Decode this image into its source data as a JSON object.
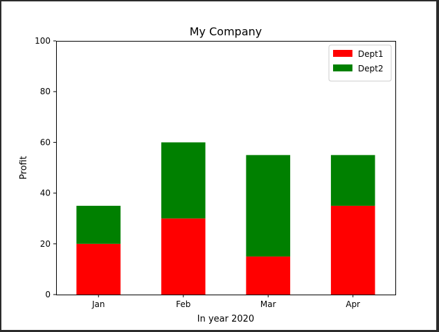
{
  "chart_data": {
    "type": "bar",
    "stacked": true,
    "title": "My Company",
    "xlabel": "In year 2020",
    "ylabel": "Profit",
    "categories": [
      "Jan",
      "Feb",
      "Mar",
      "Apr"
    ],
    "ylim": [
      0,
      100
    ],
    "yticks": [
      0,
      20,
      40,
      60,
      80,
      100
    ],
    "grid": false,
    "legend_position": "top-right",
    "series": [
      {
        "name": "Dept1",
        "color": "#ff0000",
        "values": [
          20,
          30,
          15,
          35
        ]
      },
      {
        "name": "Dept2",
        "color": "#008000",
        "values": [
          15,
          30,
          40,
          20
        ]
      }
    ]
  }
}
